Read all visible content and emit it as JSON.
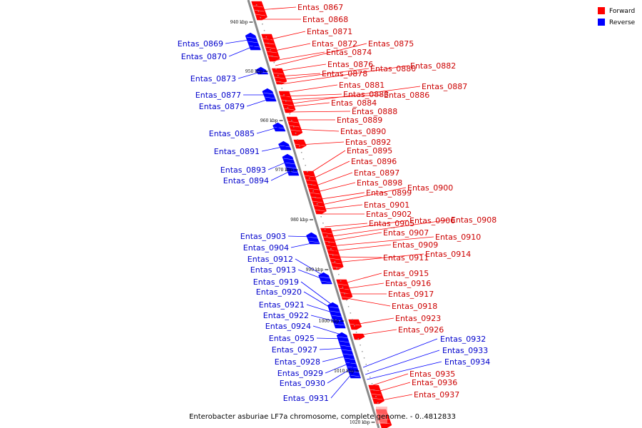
{
  "caption": "Enterobacter asburiae LF7a chromosome, complete genome. - 0..4812833",
  "legend": [
    {
      "label": "Forward",
      "color": "#ff0000"
    },
    {
      "label": "Reverse",
      "color": "#0000ff"
    }
  ],
  "ticks": [
    "940 kbp",
    "950 kbp",
    "960 kbp",
    "970 kbp",
    "980 kbp",
    "990 kbp",
    "1000 kbp",
    "1010 kbp",
    "1020 kbp"
  ],
  "forward_labels": [
    "Entas_0867",
    "Entas_0868",
    "Entas_0871",
    "Entas_0872",
    "Entas_0874",
    "Entas_0875",
    "Entas_0876",
    "Entas_0878",
    "Entas_0880",
    "Entas_0882",
    "Entas_0881",
    "Entas_0883",
    "Entas_0886",
    "Entas_0887",
    "Entas_0884",
    "Entas_0888",
    "Entas_0889",
    "Entas_0890",
    "Entas_0892",
    "Entas_0895",
    "Entas_0896",
    "Entas_0897",
    "Entas_0898",
    "Entas_0899",
    "Entas_0900",
    "Entas_0901",
    "Entas_0902",
    "Entas_0905",
    "Entas_0906",
    "Entas_0908",
    "Entas_0907",
    "Entas_0910",
    "Entas_0909",
    "Entas_0911",
    "Entas_0914",
    "Entas_0915",
    "Entas_0916",
    "Entas_0917",
    "Entas_0918",
    "Entas_0923",
    "Entas_0926",
    "Entas_0935",
    "Entas_0936",
    "Entas_0937"
  ],
  "reverse_labels": [
    "Entas_0869",
    "Entas_0870",
    "Entas_0873",
    "Entas_0877",
    "Entas_0879",
    "Entas_0885",
    "Entas_0891",
    "Entas_0893",
    "Entas_0894",
    "Entas_0903",
    "Entas_0904",
    "Entas_0912",
    "Entas_0913",
    "Entas_0919",
    "Entas_0920",
    "Entas_0921",
    "Entas_0922",
    "Entas_0924",
    "Entas_0925",
    "Entas_0927",
    "Entas_0928",
    "Entas_0929",
    "Entas_0930",
    "Entas_0931",
    "Entas_0932",
    "Entas_0933",
    "Entas_0934"
  ]
}
